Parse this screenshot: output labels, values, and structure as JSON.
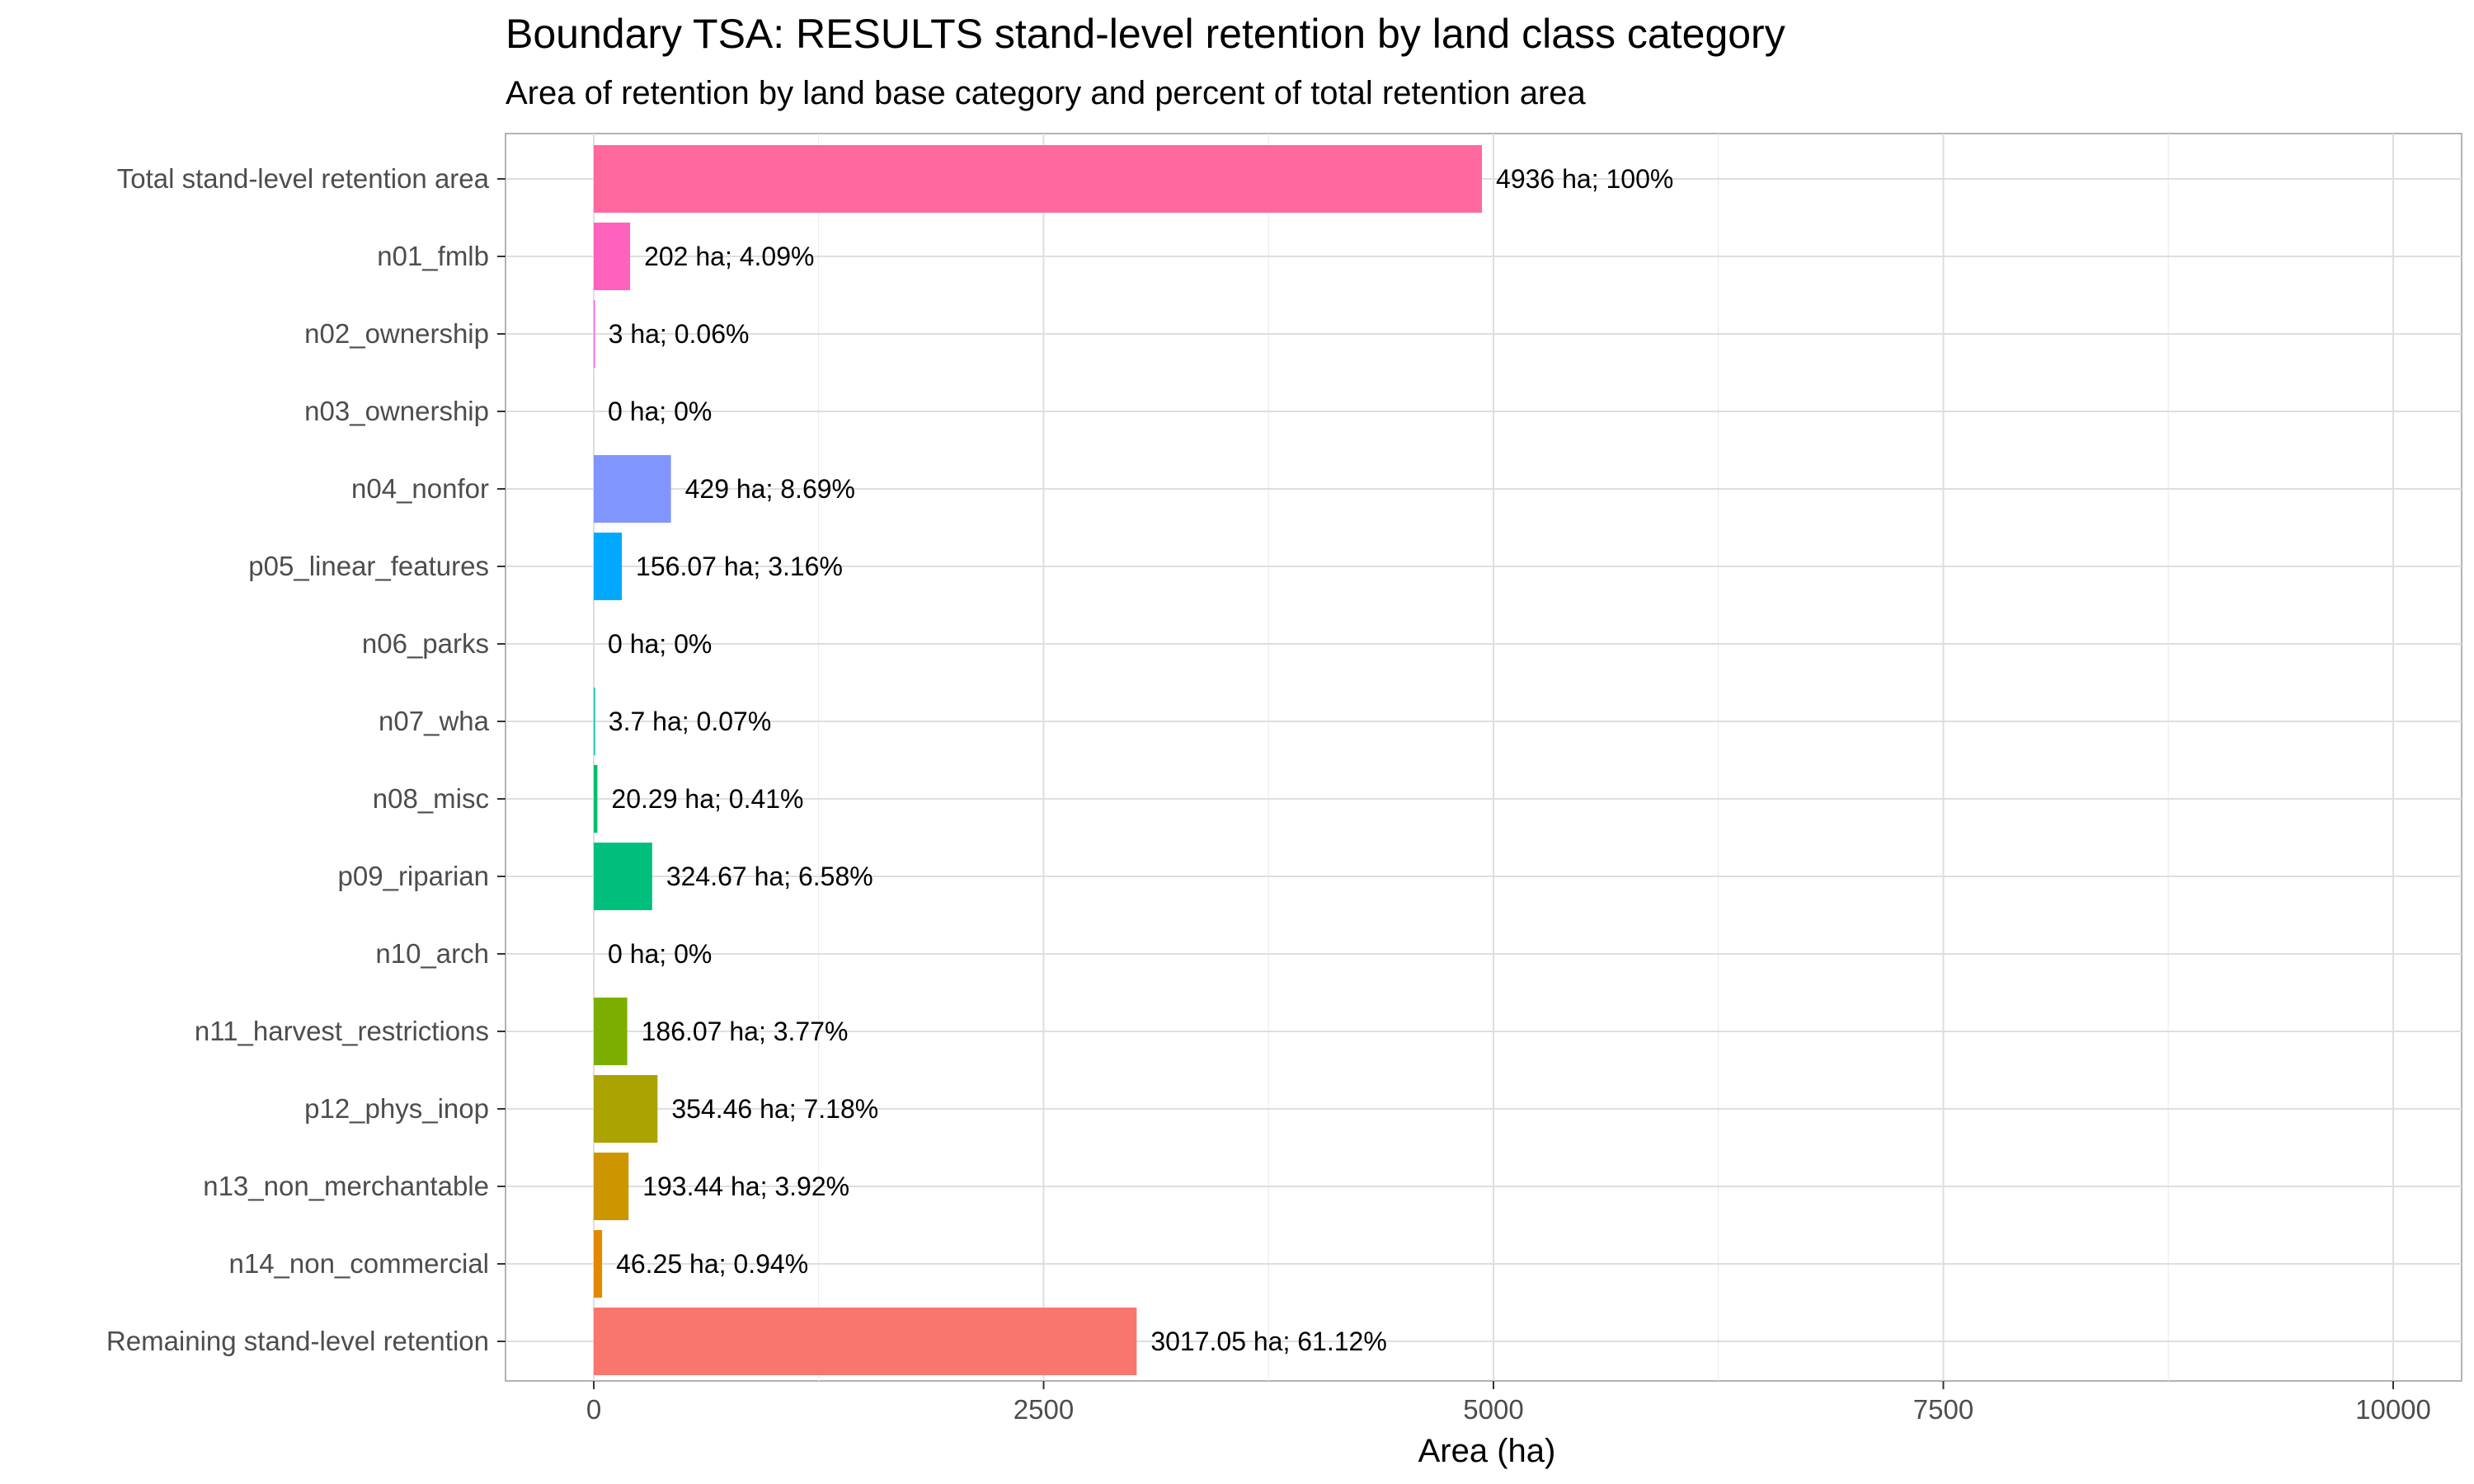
{
  "chart_data": {
    "type": "bar",
    "orientation": "horizontal",
    "title": "Boundary TSA: RESULTS stand-level retention by land class category",
    "subtitle": "Area of retention by land base category and percent of total retention area",
    "xlabel": "Area (ha)",
    "ylabel": "",
    "xlim": [
      -500,
      10400
    ],
    "x_ticks": [
      0,
      2500,
      5000,
      7500,
      10000
    ],
    "grid": true,
    "legend": "none",
    "categories": [
      "Total stand-level retention area",
      "n01_fmlb",
      "n02_ownership",
      "n03_ownership",
      "n04_nonfor",
      "p05_linear_features",
      "n06_parks",
      "n07_wha",
      "n08_misc",
      "p09_riparian",
      "n10_arch",
      "n11_harvest_restrictions",
      "p12_phys_inop",
      "n13_non_merchantable",
      "n14_non_commercial",
      "Remaining stand-level retention"
    ],
    "values": [
      4936,
      202,
      3,
      0,
      429,
      156.07,
      0,
      3.7,
      20.29,
      324.67,
      0,
      186.07,
      354.46,
      193.44,
      46.25,
      3017.05
    ],
    "labels": [
      "4936 ha; 100%",
      "202 ha; 4.09%",
      "3 ha; 0.06%",
      "0 ha; 0%",
      "429 ha; 8.69%",
      "156.07 ha; 3.16%",
      "0 ha; 0%",
      "3.7 ha; 0.07%",
      "20.29 ha; 0.41%",
      "324.67 ha; 6.58%",
      "0 ha; 0%",
      "186.07 ha; 3.77%",
      "354.46 ha; 7.18%",
      "193.44 ha; 3.92%",
      "46.25 ha; 0.94%",
      "3017.05 ha; 61.12%"
    ],
    "colors": [
      "#FF689F",
      "#FF62BC",
      "#F564E3",
      "#DB72FB",
      "#8195FF",
      "#00A9FF",
      "#00B8E7",
      "#00C0AF",
      "#00BE67",
      "#00BF7D",
      "#7CAE00",
      "#7CAE00",
      "#ABA300",
      "#CD9600",
      "#E38900",
      "#F8766D"
    ],
    "panel_border_color": "#b3b3b3",
    "grid_color": "#dedede"
  }
}
